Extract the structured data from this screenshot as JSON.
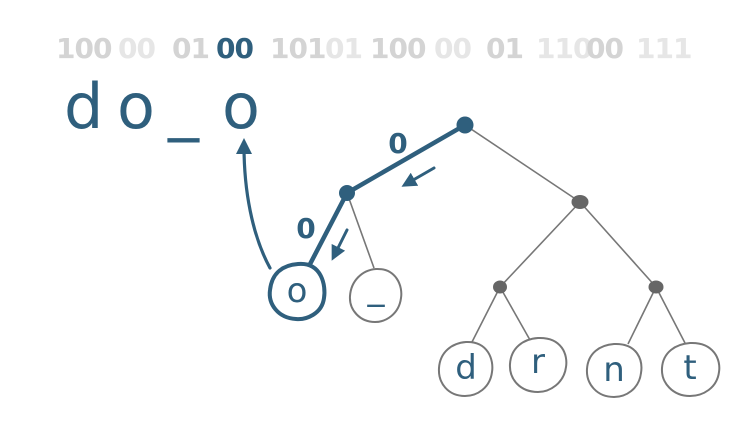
{
  "bit_stream": [
    {
      "text": "100",
      "shade": "#d4d4d4"
    },
    {
      "text": "00",
      "shade": "#e6e6e6"
    },
    {
      "text": "01",
      "shade": "#d4d4d4"
    },
    {
      "text": "00",
      "shade": "#2f5f7d"
    },
    {
      "text": "101",
      "shade": "#d4d4d4"
    },
    {
      "text": "01",
      "shade": "#e6e6e6"
    },
    {
      "text": "100",
      "shade": "#d4d4d4"
    },
    {
      "text": "00",
      "shade": "#e6e6e6"
    },
    {
      "text": "01",
      "shade": "#d4d4d4"
    },
    {
      "text": "110",
      "shade": "#e6e6e6"
    },
    {
      "text": "00",
      "shade": "#d4d4d4"
    },
    {
      "text": "111",
      "shade": "#e6e6e6"
    }
  ],
  "decoded": {
    "char_1": "d",
    "char_2": "o",
    "char_3": "_",
    "char_4": "o"
  },
  "edges": {
    "root_to_left": "0",
    "left_to_o": "0"
  },
  "leaves": {
    "o": "o",
    "underscore": "_",
    "d": "d",
    "r": "r",
    "n": "n",
    "t": "t"
  },
  "colors": {
    "accent": "#2f5f7d",
    "tree_node": "#666666",
    "tree_edge": "#777777",
    "leaf_outline": "#777777",
    "bits_light": "#e6e6e6"
  }
}
